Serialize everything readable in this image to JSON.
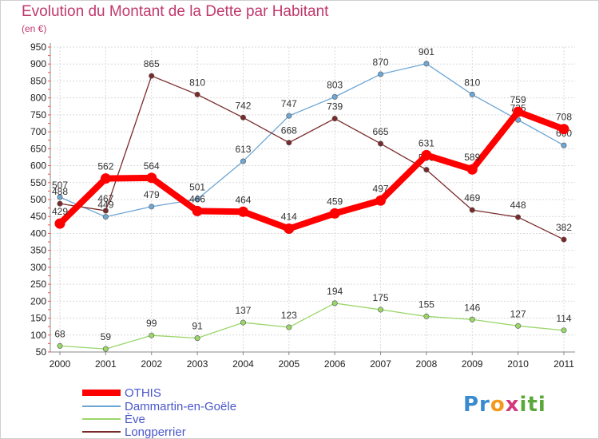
{
  "title": "Evolution du Montant de la Dette par Habitant",
  "unit_label": "(en €)",
  "brand": {
    "p1": "Pr",
    "p2": "o",
    "p3": "x",
    "p4": "iti"
  },
  "chart_data": {
    "type": "line",
    "title": "Evolution du Montant de la Dette par Habitant",
    "ylabel": "(en €)",
    "x": [
      "2000",
      "2001",
      "2002",
      "2003",
      "2004",
      "2005",
      "2006",
      "2007",
      "2008",
      "2009",
      "2010",
      "2011"
    ],
    "ylim": [
      50,
      950
    ],
    "yticks": [
      50,
      100,
      150,
      200,
      250,
      300,
      350,
      400,
      450,
      500,
      550,
      600,
      650,
      700,
      750,
      800,
      850,
      900,
      950
    ],
    "grid": true,
    "legend_position": "bottom-left",
    "series": [
      {
        "name": "OTHIS",
        "color": "#ff0000",
        "values": [
          429,
          562,
          564,
          466,
          464,
          414,
          459,
          497,
          631,
          589,
          759,
          708
        ]
      },
      {
        "name": "Dammartin-en-Goële",
        "color": "#6ea6d4",
        "values": [
          507,
          449,
          479,
          501,
          613,
          747,
          803,
          870,
          901,
          810,
          735,
          660
        ]
      },
      {
        "name": "Ève",
        "color": "#9ad66a",
        "values": [
          68,
          59,
          99,
          91,
          137,
          123,
          194,
          175,
          155,
          146,
          127,
          114
        ]
      },
      {
        "name": "Longperrier",
        "color": "#7a2a2a",
        "values": [
          488,
          467,
          865,
          810,
          742,
          668,
          739,
          665,
          588,
          469,
          448,
          382
        ]
      }
    ]
  }
}
